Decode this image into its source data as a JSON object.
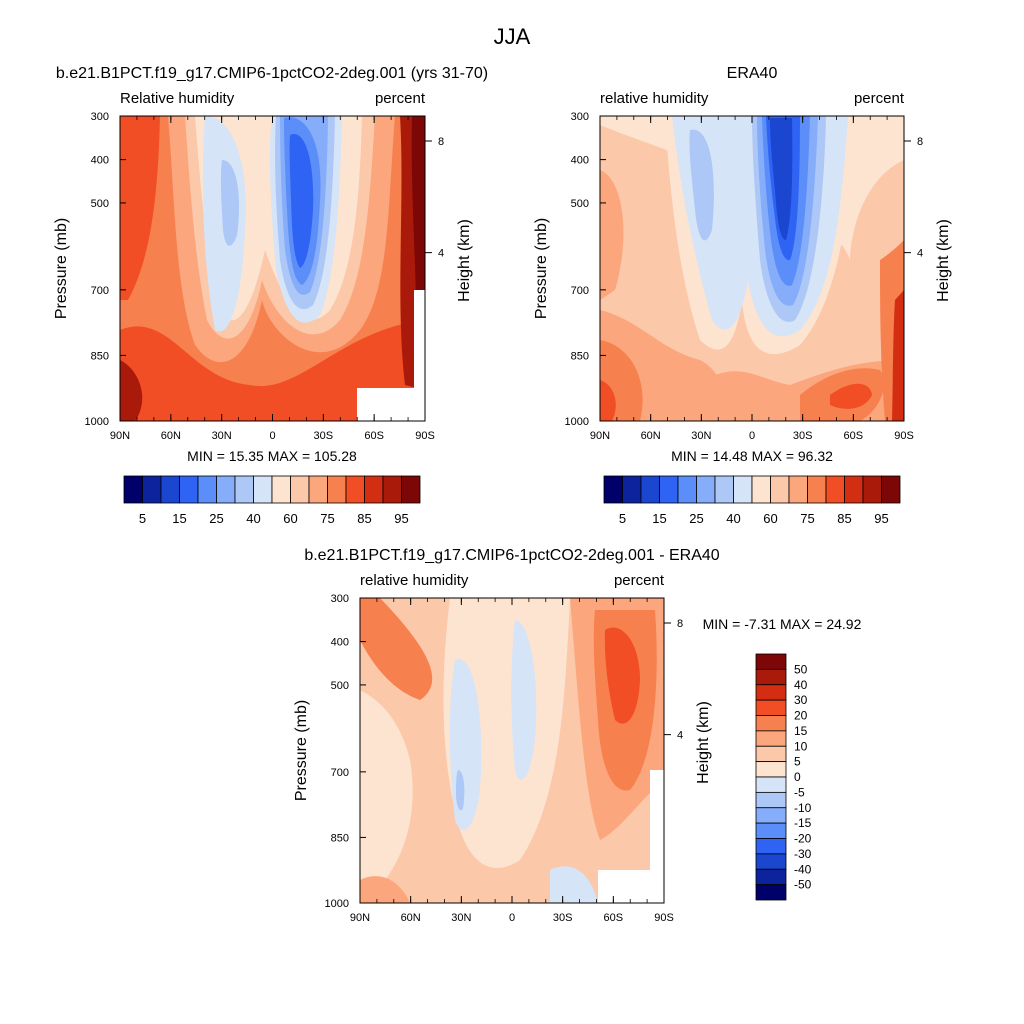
{
  "figure": {
    "title": "JJA"
  },
  "panels": [
    {
      "id": "model",
      "title": "b.e21.B1PCT.f19_g17.CMIP6-1pctCO2-2deg.001 (yrs 31-70)",
      "left_label": "Relative humidity",
      "right_label": "percent",
      "stats": "MIN =  15.35  MAX = 105.28"
    },
    {
      "id": "obs",
      "title": "ERA40",
      "left_label": "relative humidity",
      "right_label": "percent",
      "stats": "MIN =  14.48  MAX =  96.32"
    },
    {
      "id": "diff",
      "title": "b.e21.B1PCT.f19_g17.CMIP6-1pctCO2-2deg.001 - ERA40",
      "left_label": "relative humidity",
      "right_label": "percent",
      "stats": "MIN =  -7.31  MAX =  24.92"
    }
  ],
  "axes": {
    "xlabels": [
      "90N",
      "60N",
      "30N",
      "0",
      "30S",
      "60S",
      "90S"
    ],
    "ylabel": "Pressure (mb)",
    "ylabels": [
      "300",
      "400",
      "500",
      "700",
      "850",
      "1000"
    ],
    "y2label": "Height (km)",
    "y2labels": [
      "8",
      "4"
    ]
  },
  "colorbars": {
    "abs": {
      "labels": [
        "5",
        "15",
        "25",
        "40",
        "60",
        "75",
        "85",
        "95"
      ],
      "colors": [
        "#00006b",
        "#0d239e",
        "#1a46d0",
        "#2f63f4",
        "#5c8ef9",
        "#86adfa",
        "#adc8f7",
        "#d6e4f7",
        "#fde4d1",
        "#fcc8aa",
        "#fba67c",
        "#f7804f",
        "#f14e25",
        "#d42e12",
        "#aa1a0a",
        "#7d0606"
      ]
    },
    "diff": {
      "labels": [
        "50",
        "40",
        "30",
        "20",
        "15",
        "10",
        "5",
        "0",
        "-5",
        "-10",
        "-15",
        "-20",
        "-30",
        "-40",
        "-50"
      ],
      "colors": [
        "#7d0606",
        "#aa1a0a",
        "#d42e12",
        "#f14e25",
        "#f7804f",
        "#fba67c",
        "#fcc8aa",
        "#fde4d1",
        "#d6e4f7",
        "#adc8f7",
        "#86adfa",
        "#5c8ef9",
        "#2f63f4",
        "#1a46d0",
        "#0d239e",
        "#00006b"
      ]
    }
  },
  "chart_data": [
    {
      "type": "heatmap",
      "title": "b.e21.B1PCT.f19_g17.CMIP6-1pctCO2-2deg.001 (yrs 31-70)",
      "xlabel": "",
      "ylabel": "Pressure (mb)",
      "y2label": "Height (km)",
      "x": [
        -90,
        -60,
        -30,
        0,
        30,
        60,
        90
      ],
      "x_tick_labels": [
        "90N",
        "60N",
        "30N",
        "0",
        "30S",
        "60S",
        "90S"
      ],
      "y": [
        300,
        400,
        500,
        700,
        850,
        1000
      ],
      "y_tick_labels": [
        "300",
        "400",
        "500",
        "700",
        "850",
        "1000"
      ],
      "values": [
        [
          80,
          62,
          48,
          55,
          20,
          50,
          95
        ],
        [
          82,
          63,
          42,
          55,
          18,
          55,
          92
        ],
        [
          78,
          63,
          38,
          55,
          20,
          60,
          90
        ],
        [
          70,
          60,
          42,
          60,
          30,
          65,
          88
        ],
        [
          85,
          75,
          60,
          78,
          75,
          82,
          92
        ],
        [
          95,
          85,
          80,
          80,
          80,
          80,
          88
        ]
      ],
      "min": 15.35,
      "max": 105.28,
      "levels": [
        5,
        10,
        15,
        20,
        25,
        30,
        40,
        50,
        60,
        70,
        75,
        80,
        85,
        90,
        95
      ]
    },
    {
      "type": "heatmap",
      "title": "ERA40",
      "xlabel": "",
      "ylabel": "Pressure (mb)",
      "y2label": "Height (km)",
      "x": [
        -90,
        -60,
        -30,
        0,
        30,
        60,
        90
      ],
      "x_tick_labels": [
        "90N",
        "60N",
        "30N",
        "0",
        "30S",
        "60S",
        "90S"
      ],
      "y": [
        300,
        400,
        500,
        700,
        850,
        1000
      ],
      "y_tick_labels": [
        "300",
        "400",
        "500",
        "700",
        "850",
        "1000"
      ],
      "values": [
        [
          62,
          60,
          45,
          55,
          28,
          52,
          62
        ],
        [
          70,
          60,
          42,
          55,
          18,
          55,
          65
        ],
        [
          70,
          60,
          40,
          55,
          20,
          60,
          68
        ],
        [
          70,
          62,
          45,
          58,
          35,
          62,
          75
        ],
        [
          80,
          72,
          65,
          72,
          72,
          78,
          85
        ],
        [
          85,
          80,
          78,
          80,
          78,
          82,
          90
        ]
      ],
      "min": 14.48,
      "max": 96.32,
      "levels": [
        5,
        10,
        15,
        20,
        25,
        30,
        40,
        50,
        60,
        70,
        75,
        80,
        85,
        90,
        95
      ]
    },
    {
      "type": "heatmap",
      "title": "b.e21.B1PCT.f19_g17.CMIP6-1pctCO2-2deg.001 - ERA40",
      "xlabel": "",
      "ylabel": "Pressure (mb)",
      "y2label": "Height (km)",
      "x": [
        -90,
        -60,
        -30,
        0,
        30,
        60,
        90
      ],
      "x_tick_labels": [
        "90N",
        "60N",
        "30N",
        "0",
        "30S",
        "60S",
        "90S"
      ],
      "y": [
        300,
        400,
        500,
        700,
        850,
        1000
      ],
      "y_tick_labels": [
        "300",
        "400",
        "500",
        "700",
        "850",
        "1000"
      ],
      "values": [
        [
          15,
          5,
          3,
          0,
          3,
          10,
          18
        ],
        [
          15,
          5,
          2,
          -2,
          3,
          20,
          22
        ],
        [
          10,
          4,
          -2,
          0,
          3,
          22,
          20
        ],
        [
          3,
          4,
          -3,
          0,
          2,
          18,
          15
        ],
        [
          5,
          4,
          2,
          3,
          6,
          10,
          5
        ],
        [
          8,
          5,
          3,
          3,
          5,
          5,
          5
        ]
      ],
      "min": -7.31,
      "max": 24.92,
      "levels": [
        -50,
        -40,
        -30,
        -20,
        -15,
        -10,
        -5,
        0,
        5,
        10,
        15,
        20,
        30,
        40,
        50
      ]
    }
  ]
}
